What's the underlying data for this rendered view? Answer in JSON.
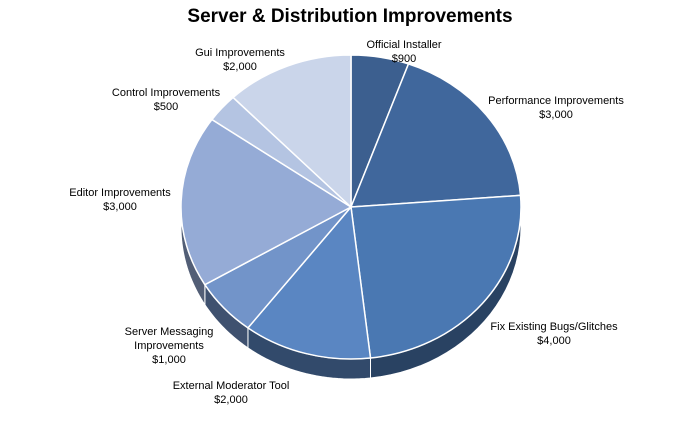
{
  "chart_data": {
    "type": "pie",
    "title": "Server & Distribution Improvements",
    "legend": "none",
    "slices": [
      {
        "label": "Official Installer",
        "value": 900,
        "value_label": "$900",
        "color": "#3c5f8f"
      },
      {
        "label": "Performance Improvements",
        "value": 3000,
        "value_label": "$3,000",
        "color": "#40679c"
      },
      {
        "label": "Fix Existing Bugs/Glitches",
        "value": 4000,
        "value_label": "$4,000",
        "color": "#4a78b2"
      },
      {
        "label": "External Moderator Tool",
        "value": 2000,
        "value_label": "$2,000",
        "color": "#5a86c2"
      },
      {
        "label": "Server Messaging Improvements",
        "value": 1000,
        "value_label": "$1,000",
        "color": "#7294c9"
      },
      {
        "label": "Editor Improvements",
        "value": 3000,
        "value_label": "$3,000",
        "color": "#95abd6"
      },
      {
        "label": "Control Improvements",
        "value": 500,
        "value_label": "$500",
        "color": "#b4c4e2"
      },
      {
        "label": "Gui Improvements",
        "value": 2000,
        "value_label": "$2,000",
        "color": "#cad5ea"
      }
    ]
  }
}
